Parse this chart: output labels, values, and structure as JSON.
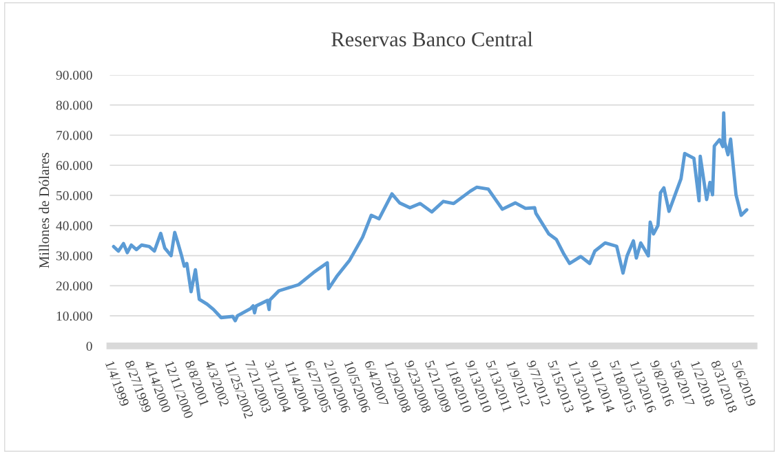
{
  "chart_data": {
    "type": "line",
    "title": "Reservas Banco Central",
    "ylabel": "Millones de Dólares",
    "x": [
      "1999-01-04",
      "1999-03-01",
      "1999-05-01",
      "1999-06-15",
      "1999-08-01",
      "1999-10-01",
      "1999-12-01",
      "2000-03-01",
      "2000-05-01",
      "2000-07-15",
      "2000-09-01",
      "2000-11-15",
      "2000-12-28",
      "2001-02-01",
      "2001-03-15",
      "2001-04-20",
      "2001-05-20",
      "2001-07-10",
      "2001-08-30",
      "2001-10-15",
      "2002-01-15",
      "2002-04-01",
      "2002-07-01",
      "2002-11-15",
      "2002-12-15",
      "2003-01-10",
      "2003-06-15",
      "2003-07-15",
      "2003-08-01",
      "2003-08-20",
      "2004-01-01",
      "2004-01-20",
      "2004-01-30",
      "2004-05-15",
      "2005-01-01",
      "2005-07-01",
      "2005-12-10",
      "2005-12-25",
      "2006-04-01",
      "2006-09-01",
      "2007-02-01",
      "2007-05-15",
      "2007-08-15",
      "2008-01-15",
      "2008-04-15",
      "2008-08-15",
      "2008-12-15",
      "2009-05-01",
      "2009-09-15",
      "2010-01-15",
      "2010-08-01",
      "2010-10-15",
      "2011-03-01",
      "2011-08-15",
      "2012-01-15",
      "2012-05-15",
      "2012-09-01",
      "2012-09-15",
      "2013-02-15",
      "2013-05-15",
      "2013-08-15",
      "2013-10-20",
      "2014-03-01",
      "2014-06-15",
      "2014-08-15",
      "2014-12-15",
      "2015-05-01",
      "2015-07-15",
      "2015-09-01",
      "2015-11-15",
      "2015-12-20",
      "2016-02-10",
      "2016-05-10",
      "2016-06-01",
      "2016-07-10",
      "2016-09-01",
      "2016-10-01",
      "2016-11-10",
      "2017-01-10",
      "2017-04-01",
      "2017-06-01",
      "2017-07-15",
      "2017-11-01",
      "2018-01-01",
      "2018-01-15",
      "2018-04-01",
      "2018-05-10",
      "2018-06-10",
      "2018-07-01",
      "2018-09-01",
      "2018-10-10",
      "2018-10-20",
      "2018-11-01",
      "2018-12-10",
      "2019-01-10",
      "2019-03-15",
      "2019-05-15",
      "2019-07-20"
    ],
    "series": [
      {
        "color": "#5b9bd5",
        "values": [
          33000,
          31500,
          34000,
          31000,
          33500,
          32000,
          33500,
          33000,
          31500,
          37400,
          32500,
          30000,
          37700,
          34500,
          30400,
          26500,
          27400,
          18000,
          25300,
          15500,
          13900,
          12100,
          9400,
          9800,
          8400,
          10000,
          12400,
          13300,
          11000,
          13300,
          15100,
          12100,
          15300,
          18300,
          20300,
          24400,
          27600,
          19000,
          23100,
          28500,
          36100,
          43400,
          42200,
          50500,
          47500,
          45900,
          47300,
          44500,
          48000,
          47300,
          51400,
          52700,
          52100,
          45400,
          47500,
          45700,
          45900,
          44100,
          37200,
          35400,
          30400,
          27400,
          29700,
          27400,
          31500,
          34200,
          33100,
          24200,
          29900,
          34900,
          29200,
          34200,
          29900,
          41100,
          37200,
          40000,
          50900,
          52500,
          44700,
          50900,
          55500,
          63900,
          62300,
          48200,
          63000,
          48600,
          54300,
          50200,
          66400,
          68500,
          66200,
          77400,
          67600,
          63500,
          68700,
          50200,
          43400,
          45200
        ]
      }
    ],
    "xlim": [
      "1998-11-20",
      "2019-10-15"
    ],
    "xticks": [
      {
        "value": "1999-01-04",
        "label": "1/4/1999"
      },
      {
        "value": "1999-08-27",
        "label": "8/27/1999"
      },
      {
        "value": "2000-04-14",
        "label": "4/14/2000"
      },
      {
        "value": "2000-12-11",
        "label": "12/11/2000"
      },
      {
        "value": "2001-08-08",
        "label": "8/8/2001"
      },
      {
        "value": "2002-04-03",
        "label": "4/3/2002"
      },
      {
        "value": "2002-11-25",
        "label": "11/25/2002"
      },
      {
        "value": "2003-07-21",
        "label": "7/21/2003"
      },
      {
        "value": "2004-03-11",
        "label": "3/11/2004"
      },
      {
        "value": "2004-11-04",
        "label": "11/4/2004"
      },
      {
        "value": "2005-06-27",
        "label": "6/27/2005"
      },
      {
        "value": "2006-02-10",
        "label": "2/10/2006"
      },
      {
        "value": "2006-10-05",
        "label": "10/5/2006"
      },
      {
        "value": "2007-06-04",
        "label": "6/4/2007"
      },
      {
        "value": "2008-01-29",
        "label": "1/29/2008"
      },
      {
        "value": "2008-09-23",
        "label": "9/23/2008"
      },
      {
        "value": "2009-05-21",
        "label": "5/21/2009"
      },
      {
        "value": "2010-01-18",
        "label": "1/18/2010"
      },
      {
        "value": "2010-09-13",
        "label": "9/13/2010"
      },
      {
        "value": "2011-05-13",
        "label": "5/13/2011"
      },
      {
        "value": "2012-01-09",
        "label": "1/9/2012"
      },
      {
        "value": "2012-09-07",
        "label": "9/7/2012"
      },
      {
        "value": "2013-05-15",
        "label": "5/15/2013"
      },
      {
        "value": "2014-01-13",
        "label": "1/13/2014"
      },
      {
        "value": "2014-09-11",
        "label": "9/11/2014"
      },
      {
        "value": "2015-05-18",
        "label": "5/18/2015"
      },
      {
        "value": "2016-01-13",
        "label": "1/13/2016"
      },
      {
        "value": "2016-09-08",
        "label": "9/8/2016"
      },
      {
        "value": "2017-05-08",
        "label": "5/8/2017"
      },
      {
        "value": "2018-01-02",
        "label": "1/2/2018"
      },
      {
        "value": "2018-08-31",
        "label": "8/31/2018"
      },
      {
        "value": "2019-05-06",
        "label": "5/6/2019"
      }
    ],
    "ylim": [
      0,
      90000
    ],
    "yticks": [
      0,
      {
        "value": 10000,
        "label": "10.000"
      },
      {
        "value": 20000,
        "label": "20.000"
      },
      {
        "value": 30000,
        "label": "30.000"
      },
      {
        "value": 40000,
        "label": "40.000"
      },
      {
        "value": 50000,
        "label": "50.000"
      },
      {
        "value": 60000,
        "label": "60.000"
      },
      {
        "value": 70000,
        "label": "70.000"
      },
      {
        "value": 80000,
        "label": "80.000"
      },
      {
        "value": 90000,
        "label": "90.000"
      }
    ],
    "grid": "y",
    "line_style": "solid"
  }
}
